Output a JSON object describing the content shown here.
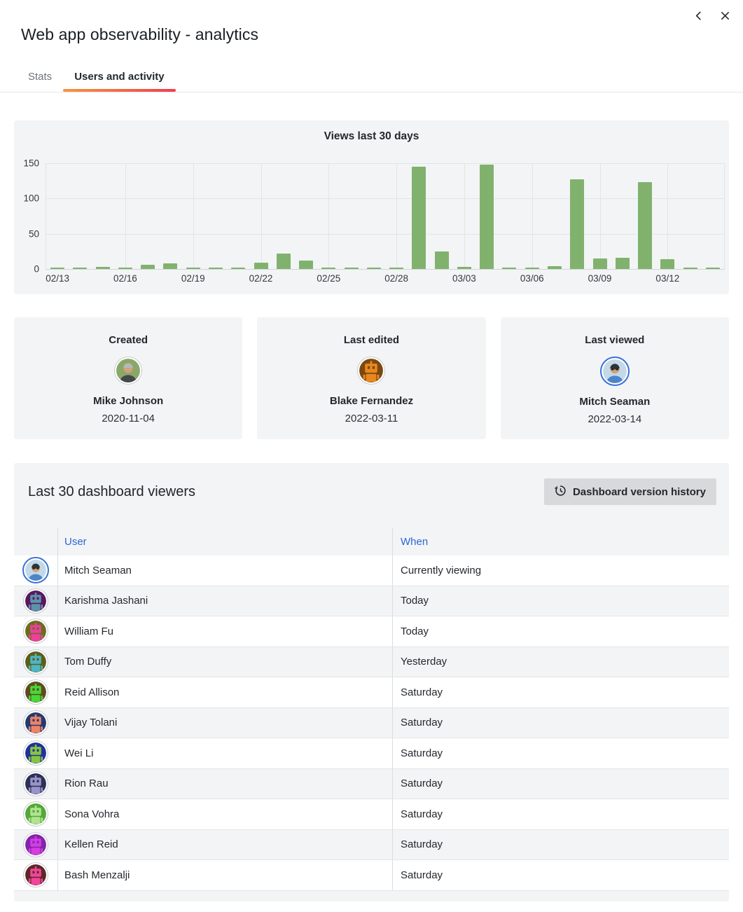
{
  "window": {
    "title": "Web app observability - analytics",
    "back_icon": "chevron-left",
    "close_icon": "x"
  },
  "tabs": [
    {
      "label": "Stats",
      "active": false
    },
    {
      "label": "Users and activity",
      "active": true
    }
  ],
  "chart_data": {
    "type": "bar",
    "title": "Views last 30 days",
    "x": [
      "02/13",
      "02/14",
      "02/15",
      "02/16",
      "02/17",
      "02/18",
      "02/19",
      "02/20",
      "02/21",
      "02/22",
      "02/23",
      "02/24",
      "02/25",
      "02/26",
      "02/27",
      "02/28",
      "03/01",
      "03/02",
      "03/03",
      "03/04",
      "03/05",
      "03/06",
      "03/07",
      "03/08",
      "03/09",
      "03/10",
      "03/11",
      "03/12",
      "03/13",
      "03/14"
    ],
    "values": [
      1,
      2,
      3,
      2,
      6,
      8,
      2,
      1,
      2,
      9,
      22,
      12,
      1,
      2,
      1,
      2,
      145,
      25,
      3,
      148,
      1,
      1,
      4,
      127,
      15,
      16,
      123,
      14,
      1,
      2
    ],
    "tick_every": 3,
    "x_tick_labels": [
      "02/13",
      "02/16",
      "02/19",
      "02/22",
      "02/25",
      "02/28",
      "03/03",
      "03/06",
      "03/09",
      "03/12"
    ],
    "ylim": [
      0,
      150
    ],
    "yticks": [
      0,
      50,
      100,
      150
    ],
    "xlabel": "",
    "ylabel": "",
    "grid": true,
    "legend": "none",
    "bar_color": "#80b26e"
  },
  "cards": [
    {
      "label": "Created",
      "name": "Mike Johnson",
      "date": "2020-11-04",
      "avatar": {
        "kind": "photo",
        "bg": "#8aa768",
        "hair": "#b5b9b9",
        "face": "#d2a17c",
        "shirt": "#43484c"
      }
    },
    {
      "label": "Last edited",
      "name": "Blake Fernandez",
      "date": "2022-03-11",
      "avatar": {
        "kind": "robot",
        "bg": "#7c480f",
        "fg": "#e8871f"
      }
    },
    {
      "label": "Last viewed",
      "name": "Mitch Seaman",
      "date": "2022-03-14",
      "avatar": {
        "kind": "photo",
        "bg": "#c3d9e8",
        "hair": "#2f3338",
        "face": "#d4a179",
        "shirt": "#4d85c9",
        "glasses": true,
        "ring": "blue"
      }
    }
  ],
  "viewers": {
    "title": "Last 30 dashboard viewers",
    "button": {
      "label": "Dashboard version history",
      "icon": "history-icon"
    },
    "columns": [
      "User",
      "When"
    ],
    "rows": [
      {
        "name": "Mitch Seaman",
        "when": "Currently viewing",
        "avatar": {
          "kind": "photo",
          "bg": "#c3d9e8",
          "hair": "#2f3338",
          "face": "#d4a179",
          "shirt": "#4d85c9",
          "glasses": true,
          "ring": "blue"
        }
      },
      {
        "name": "Karishma Jashani",
        "when": "Today",
        "avatar": {
          "kind": "robot",
          "bg": "#5a175f",
          "fg": "#5d93aa"
        }
      },
      {
        "name": "William Fu",
        "when": "Today",
        "avatar": {
          "kind": "robot",
          "bg": "#6b6d1c",
          "fg": "#ef3e9e"
        }
      },
      {
        "name": "Tom Duffy",
        "when": "Yesterday",
        "avatar": {
          "kind": "robot",
          "bg": "#5c5e18",
          "fg": "#4db6c6"
        }
      },
      {
        "name": "Reid Allison",
        "when": "Saturday",
        "avatar": {
          "kind": "robot",
          "bg": "#5f4a1e",
          "fg": "#46d839"
        }
      },
      {
        "name": "Vijay Tolani",
        "when": "Saturday",
        "avatar": {
          "kind": "robot",
          "bg": "#233a70",
          "fg": "#ef8266"
        }
      },
      {
        "name": "Wei Li",
        "when": "Saturday",
        "avatar": {
          "kind": "robot",
          "bg": "#1f3398",
          "fg": "#86c440"
        }
      },
      {
        "name": "Rion Rau",
        "when": "Saturday",
        "avatar": {
          "kind": "robot",
          "bg": "#2c3057",
          "fg": "#9a92c8"
        }
      },
      {
        "name": "Sona Vohra",
        "when": "Saturday",
        "avatar": {
          "kind": "robot",
          "bg": "#53a838",
          "fg": "#b0e391"
        }
      },
      {
        "name": "Kellen Reid",
        "when": "Saturday",
        "avatar": {
          "kind": "robot",
          "bg": "#8224ad",
          "fg": "#d43de0"
        }
      },
      {
        "name": "Bash Menzalji",
        "when": "Saturday",
        "avatar": {
          "kind": "robot",
          "bg": "#5f2728",
          "fg": "#f0459a"
        }
      }
    ]
  },
  "colors": {
    "accent_blue": "#2b66d9",
    "current_ring_blue": "#3871dc",
    "bar_green": "#80b26e",
    "tab_gradient_start": "#f8953d",
    "tab_gradient_end": "#ee3f4f",
    "panel_bg": "#f3f4f5",
    "button_bg": "#d8d9da"
  }
}
